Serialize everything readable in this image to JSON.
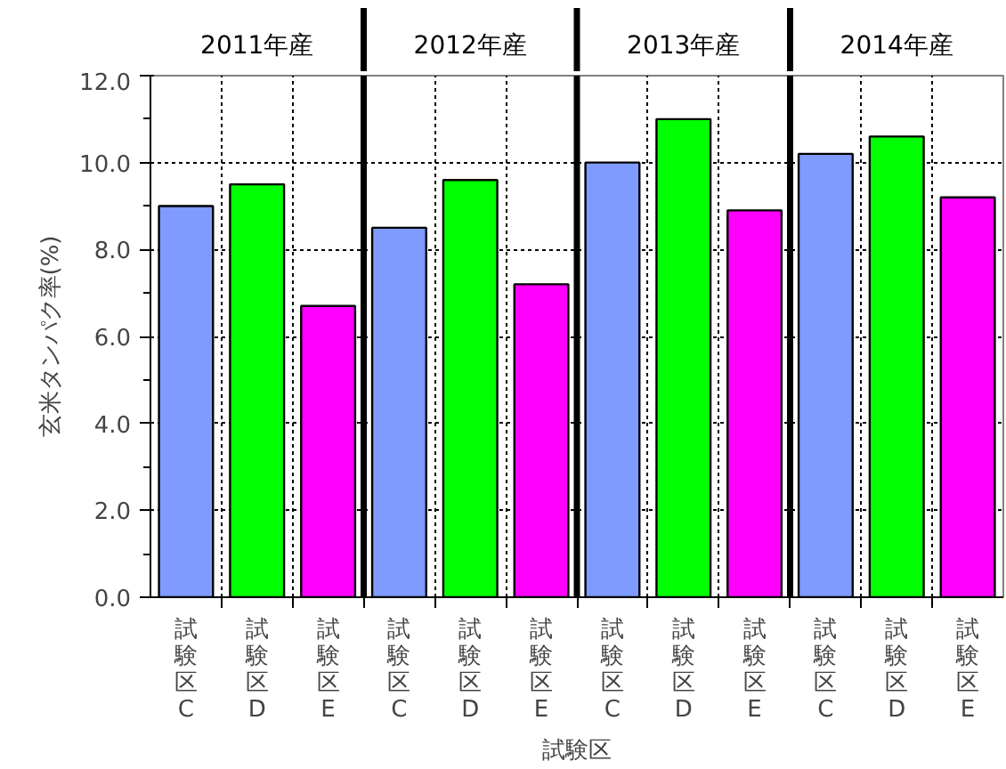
{
  "chart_data": {
    "type": "bar",
    "categories": [
      "試験区C",
      "試験区D",
      "試験区E",
      "試験区C",
      "試験区D",
      "試験区E",
      "試験区C",
      "試験区D",
      "試験区E",
      "試験区C",
      "試験区D",
      "試験区E"
    ],
    "values": [
      9.0,
      9.5,
      6.7,
      8.5,
      9.6,
      7.2,
      10.0,
      11.0,
      8.9,
      10.2,
      10.6,
      9.2
    ],
    "colors": [
      "#7f9bff",
      "#00ff00",
      "#ff00ff",
      "#7f9bff",
      "#00ff00",
      "#ff00ff",
      "#7f9bff",
      "#00ff00",
      "#ff00ff",
      "#7f9bff",
      "#00ff00",
      "#ff00ff"
    ],
    "xlabel": "試験区",
    "ylabel": "玄米タンパク率(%)",
    "annotations": [
      "2011年産",
      "2012年産",
      "2013年産",
      "2014年産"
    ],
    "ylim": [
      0,
      12
    ],
    "yticks": [
      {
        "value": 0,
        "label": "0.0"
      },
      {
        "value": 2,
        "label": "2.0"
      },
      {
        "value": 4,
        "label": "4.0"
      },
      {
        "value": 6,
        "label": "6.0"
      },
      {
        "value": 8,
        "label": "8.0"
      },
      {
        "value": 10,
        "label": "10.0"
      },
      {
        "value": 12,
        "label": "12.0"
      }
    ],
    "grid": true
  }
}
